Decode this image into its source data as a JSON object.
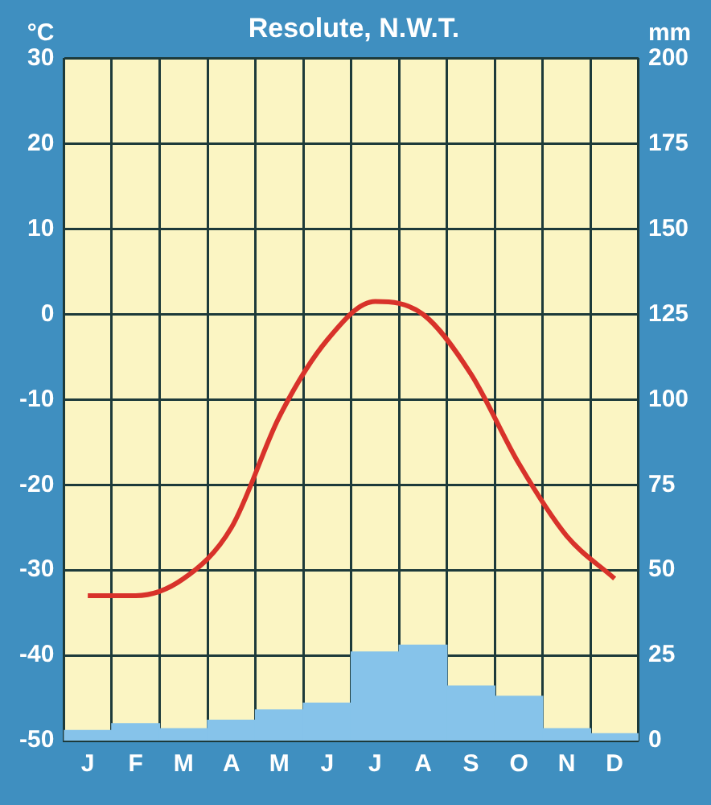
{
  "chart_data": {
    "type": "bar",
    "title": "Resolute, N.W.T.",
    "ylabel": "°C",
    "y2label": "mm",
    "categories": [
      "J",
      "F",
      "M",
      "A",
      "M",
      "J",
      "J",
      "A",
      "S",
      "O",
      "N",
      "D"
    ],
    "series": [
      {
        "axis": "y2",
        "color": "#86c3ea",
        "values": [
          3,
          5,
          3.5,
          6,
          9,
          11,
          26,
          28,
          16,
          13,
          3.5,
          2
        ]
      },
      {
        "type": "line",
        "axis": "y",
        "color": "#d8322a",
        "values": [
          -33,
          -33,
          -31,
          -25,
          -12,
          -3,
          1.5,
          0,
          -7,
          -17.5,
          -26,
          -31
        ]
      }
    ],
    "ylim": [
      -50,
      30
    ],
    "yticks": [
      -50,
      -40,
      -30,
      -20,
      -10,
      0,
      10,
      20,
      30
    ],
    "y2lim": [
      0,
      200
    ],
    "y2ticks": [
      0,
      25,
      50,
      75,
      100,
      125,
      150,
      175,
      200
    ],
    "grid": true,
    "legend": false,
    "marker": "none",
    "line_style": "solid"
  }
}
